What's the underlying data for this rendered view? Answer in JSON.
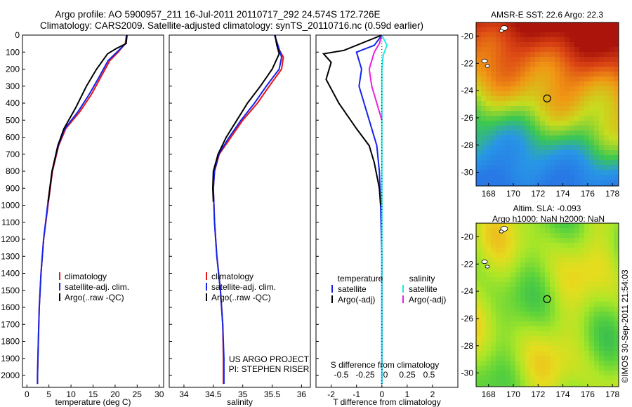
{
  "header": {
    "line1": "Argo profile: AO 5900957_211 16-Jul-2011 20110717_292 24.574S 172.726E",
    "line2": "Climatology: CARS2009. Satellite-adjusted climatology: synTS_20110716.nc (0.59d earlier)"
  },
  "colors": {
    "climatology": "#e8141b",
    "satellite": "#1424e6",
    "argo": "#000000",
    "sal_satellite": "#22e8e8",
    "sal_argo": "#e820e0"
  },
  "chart_data": [
    {
      "type": "line",
      "panel": "temperature",
      "xlabel": "temperature (deg C)",
      "ylabel": "",
      "xlim": [
        -1,
        31
      ],
      "ylim": [
        2070,
        0
      ],
      "xticks": [
        0,
        5,
        10,
        15,
        20,
        25,
        30
      ],
      "yticks": [
        0,
        100,
        200,
        300,
        400,
        500,
        600,
        700,
        800,
        900,
        1000,
        1100,
        1200,
        1300,
        1400,
        1500,
        1600,
        1700,
        1800,
        1900,
        2000
      ],
      "legend": [
        "climatology",
        "satellite-adj. clim.",
        "Argo(..raw -QC)"
      ],
      "series": [
        {
          "name": "climatology",
          "color": "#e8141b",
          "points": [
            [
              22.6,
              0
            ],
            [
              22.3,
              50
            ],
            [
              20.7,
              100
            ],
            [
              18.8,
              150
            ],
            [
              16.7,
              250
            ],
            [
              14.6,
              350
            ],
            [
              12.0,
              450
            ],
            [
              8.8,
              550
            ],
            [
              7.2,
              650
            ],
            [
              5.8,
              800
            ],
            [
              4.8,
              1000
            ],
            [
              3.8,
              1200
            ],
            [
              3.2,
              1400
            ],
            [
              2.8,
              1600
            ],
            [
              2.6,
              1800
            ],
            [
              2.4,
              2000
            ],
            [
              2.4,
              2050
            ]
          ]
        },
        {
          "name": "satellite-adj. clim.",
          "color": "#1424e6",
          "points": [
            [
              22.6,
              0
            ],
            [
              22.4,
              50
            ],
            [
              20.4,
              100
            ],
            [
              18.4,
              150
            ],
            [
              16.3,
              250
            ],
            [
              14.1,
              350
            ],
            [
              11.6,
              450
            ],
            [
              8.6,
              550
            ],
            [
              7.1,
              650
            ],
            [
              5.7,
              800
            ],
            [
              4.7,
              1000
            ],
            [
              3.8,
              1200
            ],
            [
              3.2,
              1400
            ],
            [
              2.8,
              1600
            ],
            [
              2.6,
              1800
            ],
            [
              2.4,
              2000
            ],
            [
              2.4,
              2050
            ]
          ]
        },
        {
          "name": "Argo(..raw -QC)",
          "color": "#000000",
          "points": [
            [
              22.7,
              0
            ],
            [
              22.5,
              50
            ],
            [
              20.2,
              80
            ],
            [
              18.3,
              110
            ],
            [
              15.8,
              200
            ],
            [
              13.5,
              300
            ],
            [
              11.0,
              430
            ],
            [
              8.4,
              550
            ],
            [
              7.0,
              650
            ],
            [
              5.7,
              800
            ],
            [
              4.8,
              980
            ]
          ]
        }
      ]
    },
    {
      "type": "line",
      "panel": "salinity",
      "xlabel": "salinity",
      "ylabel": "",
      "xlim": [
        33.75,
        36.15
      ],
      "ylim": [
        2070,
        0
      ],
      "xticks": [
        34,
        34.5,
        35,
        35.5,
        36
      ],
      "legend": [
        "climatology",
        "satellite-adj. clim.",
        "Argo(..raw -QC)"
      ],
      "annotation": [
        "US ARGO PROJECT",
        "PI: STEPHEN RISER"
      ],
      "series": [
        {
          "name": "climatology",
          "color": "#e8141b",
          "points": [
            [
              35.55,
              0
            ],
            [
              35.58,
              60
            ],
            [
              35.69,
              130
            ],
            [
              35.66,
              200
            ],
            [
              35.45,
              300
            ],
            [
              35.25,
              400
            ],
            [
              35.0,
              500
            ],
            [
              34.8,
              600
            ],
            [
              34.6,
              700
            ],
            [
              34.52,
              800
            ],
            [
              34.5,
              900
            ],
            [
              34.52,
              1100
            ],
            [
              34.56,
              1300
            ],
            [
              34.62,
              1500
            ],
            [
              34.66,
              1700
            ],
            [
              34.67,
              1900
            ],
            [
              34.67,
              2050
            ]
          ]
        },
        {
          "name": "satellite-adj. clim.",
          "color": "#1424e6",
          "points": [
            [
              35.54,
              0
            ],
            [
              35.6,
              60
            ],
            [
              35.66,
              130
            ],
            [
              35.62,
              200
            ],
            [
              35.4,
              300
            ],
            [
              35.2,
              400
            ],
            [
              34.97,
              500
            ],
            [
              34.77,
              600
            ],
            [
              34.59,
              700
            ],
            [
              34.52,
              800
            ],
            [
              34.5,
              900
            ],
            [
              34.52,
              1100
            ],
            [
              34.56,
              1300
            ],
            [
              34.62,
              1500
            ],
            [
              34.66,
              1700
            ],
            [
              34.68,
              1900
            ],
            [
              34.68,
              2050
            ]
          ]
        },
        {
          "name": "Argo(..raw -QC)",
          "color": "#000000",
          "points": [
            [
              35.55,
              0
            ],
            [
              35.58,
              60
            ],
            [
              35.62,
              110
            ],
            [
              35.5,
              200
            ],
            [
              35.3,
              300
            ],
            [
              35.08,
              400
            ],
            [
              34.9,
              500
            ],
            [
              34.72,
              600
            ],
            [
              34.58,
              700
            ],
            [
              34.5,
              800
            ],
            [
              34.49,
              900
            ],
            [
              34.5,
              980
            ]
          ]
        }
      ]
    },
    {
      "type": "line",
      "panel": "difference",
      "xlabel": "T difference from climatology",
      "xlabel_top": "S difference from climatology",
      "xlim": [
        -2.6,
        3.0
      ],
      "ylim": [
        2070,
        0
      ],
      "xticks": [
        -2,
        -1,
        0,
        1,
        2
      ],
      "xticks_top": [
        -0.5,
        -0.25,
        0,
        0.25,
        0.5
      ],
      "legend": {
        "temperature": [
          "satellite",
          "Argo(-adj)"
        ],
        "salinity": [
          "satellite",
          "Argo(-adj)"
        ]
      },
      "series": [
        {
          "name": "satellite",
          "group": "temperature",
          "color": "#1424e6",
          "points": [
            [
              0,
              0
            ],
            [
              -0.3,
              60
            ],
            [
              -1.0,
              100
            ],
            [
              -0.8,
              200
            ],
            [
              -0.9,
              300
            ],
            [
              -0.7,
              400
            ],
            [
              -0.5,
              500
            ],
            [
              -0.2,
              650
            ],
            [
              -0.1,
              800
            ],
            [
              -0.05,
              1000
            ],
            [
              0,
              1300
            ],
            [
              0,
              1600
            ],
            [
              0,
              2050
            ]
          ]
        },
        {
          "name": "Argo(-adj)",
          "group": "temperature",
          "color": "#000000",
          "points": [
            [
              0,
              0
            ],
            [
              -1.5,
              90
            ],
            [
              -2.3,
              110
            ],
            [
              -2.0,
              160
            ],
            [
              -2.2,
              260
            ],
            [
              -1.7,
              400
            ],
            [
              -1.0,
              550
            ],
            [
              -0.5,
              650
            ],
            [
              -0.3,
              750
            ],
            [
              -0.1,
              900
            ],
            [
              -0.05,
              1000
            ]
          ]
        },
        {
          "name": "satellite",
          "group": "salinity",
          "color": "#22e8e8",
          "points": [
            [
              0,
              0
            ],
            [
              0.2,
              60
            ],
            [
              0.05,
              120
            ],
            [
              0.0,
              200
            ],
            [
              0,
              400
            ],
            [
              0,
              700
            ],
            [
              0,
              1000
            ],
            [
              0,
              1400
            ],
            [
              0,
              2050
            ]
          ]
        },
        {
          "name": "Argo(-adj)",
          "group": "salinity",
          "color": "#e820e0",
          "points": [
            [
              0,
              0
            ],
            [
              -0.1,
              50
            ],
            [
              -0.3,
              100
            ],
            [
              -0.5,
              200
            ],
            [
              -0.4,
              300
            ],
            [
              -0.2,
              400
            ],
            [
              0,
              500
            ]
          ]
        }
      ]
    },
    {
      "type": "heatmap",
      "panel": "sst-map",
      "title": "AMSR-E SST: 22.6  Argo: 22.3",
      "xticks": [
        168,
        170,
        172,
        174,
        176,
        178
      ],
      "yticks": [
        -20,
        -22,
        -24,
        -26,
        -28,
        -30
      ],
      "xlim": [
        167,
        178.5
      ],
      "ylim": [
        -31,
        -19
      ],
      "marker": {
        "lon": 172.726,
        "lat": -24.574
      }
    },
    {
      "type": "heatmap",
      "panel": "sla-map",
      "title": "Altim. SLA: -0.093",
      "subtitle": "Argo h1000: NaN h2000: NaN",
      "xticks": [
        168,
        170,
        172,
        174,
        176,
        178
      ],
      "yticks": [
        -20,
        -22,
        -24,
        -26,
        -28,
        -30
      ],
      "xlim": [
        167,
        178.5
      ],
      "ylim": [
        -31,
        -19
      ],
      "marker": {
        "lon": 172.726,
        "lat": -24.574
      }
    }
  ],
  "credit": "©IMOS 30-Sep-2011 21:54:03"
}
